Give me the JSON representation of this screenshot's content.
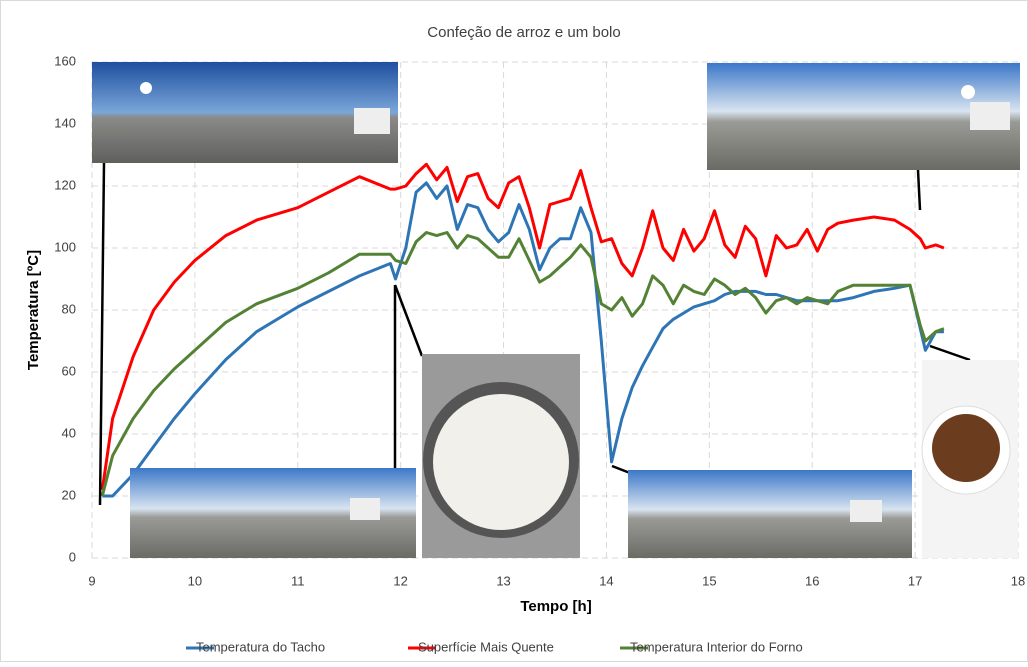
{
  "chart_data": {
    "type": "line",
    "title": "Confeção de arroz e um bolo",
    "x_label": "Tempo [h]",
    "y_label": "Temperatura [ºC]",
    "x": [
      9.1,
      9.2,
      9.4,
      9.6,
      9.8,
      10,
      10.3,
      10.6,
      11,
      11.3,
      11.6,
      11.9,
      11.95,
      12.05,
      12.15,
      12.25,
      12.35,
      12.45,
      12.55,
      12.65,
      12.75,
      12.85,
      12.95,
      13.05,
      13.15,
      13.25,
      13.35,
      13.45,
      13.55,
      13.65,
      13.75,
      13.85,
      13.95,
      14.05,
      14.15,
      14.25,
      14.35,
      14.45,
      14.55,
      14.65,
      14.75,
      14.85,
      14.95,
      15.05,
      15.15,
      15.25,
      15.35,
      15.45,
      15.55,
      15.65,
      15.75,
      15.85,
      15.95,
      16.05,
      16.15,
      16.25,
      16.4,
      16.6,
      16.8,
      16.95,
      17.05,
      17.1,
      17.2,
      17.28
    ],
    "series": [
      {
        "name": "Temperatura do Tacho",
        "color": "#2e75b6",
        "values": [
          20,
          20,
          27,
          36,
          45,
          53,
          64,
          73,
          81,
          86,
          91,
          95,
          90,
          100,
          118,
          121,
          116,
          120,
          106,
          114,
          113,
          106,
          102,
          105,
          114,
          106,
          93,
          100,
          103,
          103,
          113,
          105,
          70,
          31,
          45,
          55,
          62,
          68,
          74,
          77,
          79,
          81,
          82,
          83,
          85,
          86,
          86,
          86,
          85,
          85,
          84,
          83,
          83,
          83,
          83,
          83,
          84,
          86,
          87,
          88,
          74,
          67,
          73,
          73
        ]
      },
      {
        "name": "Superfície Mais Quente",
        "color": "#ff0000",
        "values": [
          22,
          45,
          65,
          80,
          89,
          96,
          104,
          109,
          113,
          118,
          123,
          119,
          119,
          120,
          124,
          127,
          122,
          126,
          115,
          123,
          124,
          116,
          113,
          121,
          123,
          113,
          100,
          114,
          115,
          116,
          125,
          113,
          102,
          103,
          95,
          91,
          100,
          112,
          100,
          96,
          106,
          99,
          103,
          112,
          101,
          97,
          107,
          103,
          91,
          104,
          100,
          101,
          106,
          99,
          106,
          108,
          109,
          110,
          109,
          106,
          103,
          100,
          101,
          100
        ]
      },
      {
        "name": "Temperatura Interior do Forno",
        "color": "#548235",
        "values": [
          20,
          33,
          45,
          54,
          61,
          67,
          76,
          82,
          87,
          92,
          98,
          98,
          96,
          95,
          102,
          105,
          104,
          105,
          100,
          104,
          103,
          100,
          97,
          97,
          103,
          96,
          89,
          91,
          94,
          97,
          101,
          97,
          82,
          80,
          84,
          78,
          82,
          91,
          88,
          82,
          88,
          86,
          85,
          90,
          88,
          85,
          87,
          84,
          79,
          83,
          84,
          82,
          84,
          83,
          82,
          86,
          88,
          88,
          88,
          88,
          75,
          70,
          73,
          74
        ]
      }
    ],
    "xlim": [
      9,
      18
    ],
    "xticks": [
      9,
      10,
      11,
      12,
      13,
      14,
      15,
      16,
      17,
      18
    ],
    "ylim": [
      0,
      160
    ],
    "yticks": [
      0,
      20,
      40,
      60,
      80,
      100,
      120,
      140,
      160
    ],
    "grid": true,
    "legend": "bottom"
  }
}
